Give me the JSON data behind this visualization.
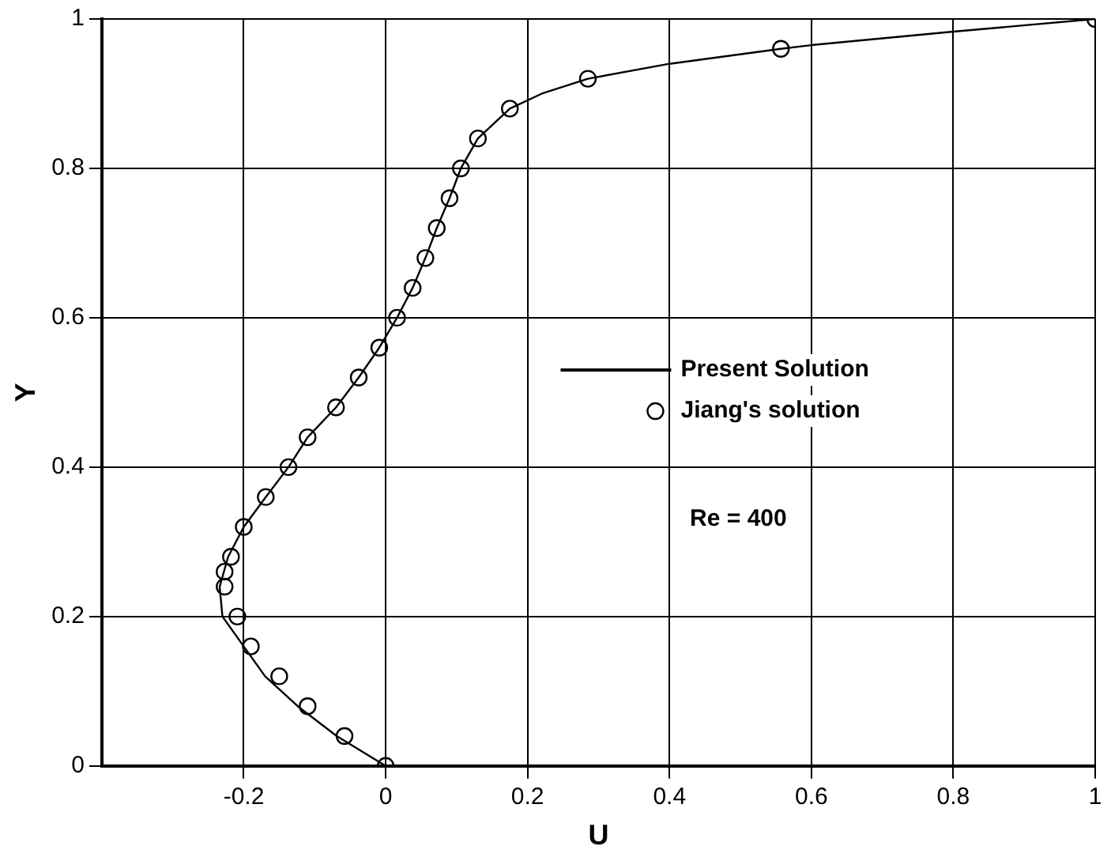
{
  "chart_data": {
    "type": "line",
    "xlabel": "U",
    "ylabel": "Y",
    "xlim": [
      -0.4,
      1
    ],
    "xticks": [
      -0.2,
      0,
      0.2,
      0.4,
      0.6,
      0.8,
      1
    ],
    "ylim": [
      0,
      1
    ],
    "yticks": [
      0,
      0.2,
      0.4,
      0.6,
      0.8,
      1
    ],
    "grid": true,
    "legend": "center right",
    "annotations": [
      "Re = 400"
    ],
    "series": [
      {
        "name": "Present Solution",
        "color": "#000000",
        "marker": "none",
        "line_style": "solid",
        "x": [
          0,
          -0.069,
          -0.124,
          -0.17,
          -0.2,
          -0.23,
          -0.234,
          -0.222,
          -0.2,
          -0.169,
          -0.137,
          -0.11,
          -0.07,
          -0.038,
          -0.009,
          0.016,
          0.038,
          0.056,
          0.072,
          0.09,
          0.106,
          0.13,
          0.175,
          0.22,
          0.285,
          0.4,
          0.557,
          0.6,
          0.8,
          1
        ],
        "values": [
          0,
          0.04,
          0.08,
          0.12,
          0.16,
          0.2,
          0.24,
          0.28,
          0.32,
          0.36,
          0.4,
          0.44,
          0.48,
          0.52,
          0.56,
          0.6,
          0.64,
          0.68,
          0.72,
          0.76,
          0.8,
          0.84,
          0.88,
          0.9,
          0.92,
          0.94,
          0.96,
          0.965,
          0.983,
          1
        ]
      },
      {
        "name": "Jiang's solution",
        "type": "scatter",
        "color": "#000000",
        "marker": "circle",
        "x": [
          0,
          -0.058,
          -0.11,
          -0.15,
          -0.19,
          -0.209,
          -0.227,
          -0.227,
          -0.218,
          -0.2,
          -0.169,
          -0.137,
          -0.11,
          -0.07,
          -0.038,
          -0.009,
          0.016,
          0.038,
          0.056,
          0.072,
          0.09,
          0.106,
          0.13,
          0.175,
          0.285,
          0.557,
          1
        ],
        "values": [
          0,
          0.04,
          0.08,
          0.12,
          0.16,
          0.2,
          0.24,
          0.26,
          0.28,
          0.32,
          0.36,
          0.4,
          0.44,
          0.48,
          0.52,
          0.56,
          0.6,
          0.64,
          0.68,
          0.72,
          0.76,
          0.8,
          0.84,
          0.88,
          0.92,
          0.96,
          1
        ]
      }
    ]
  }
}
